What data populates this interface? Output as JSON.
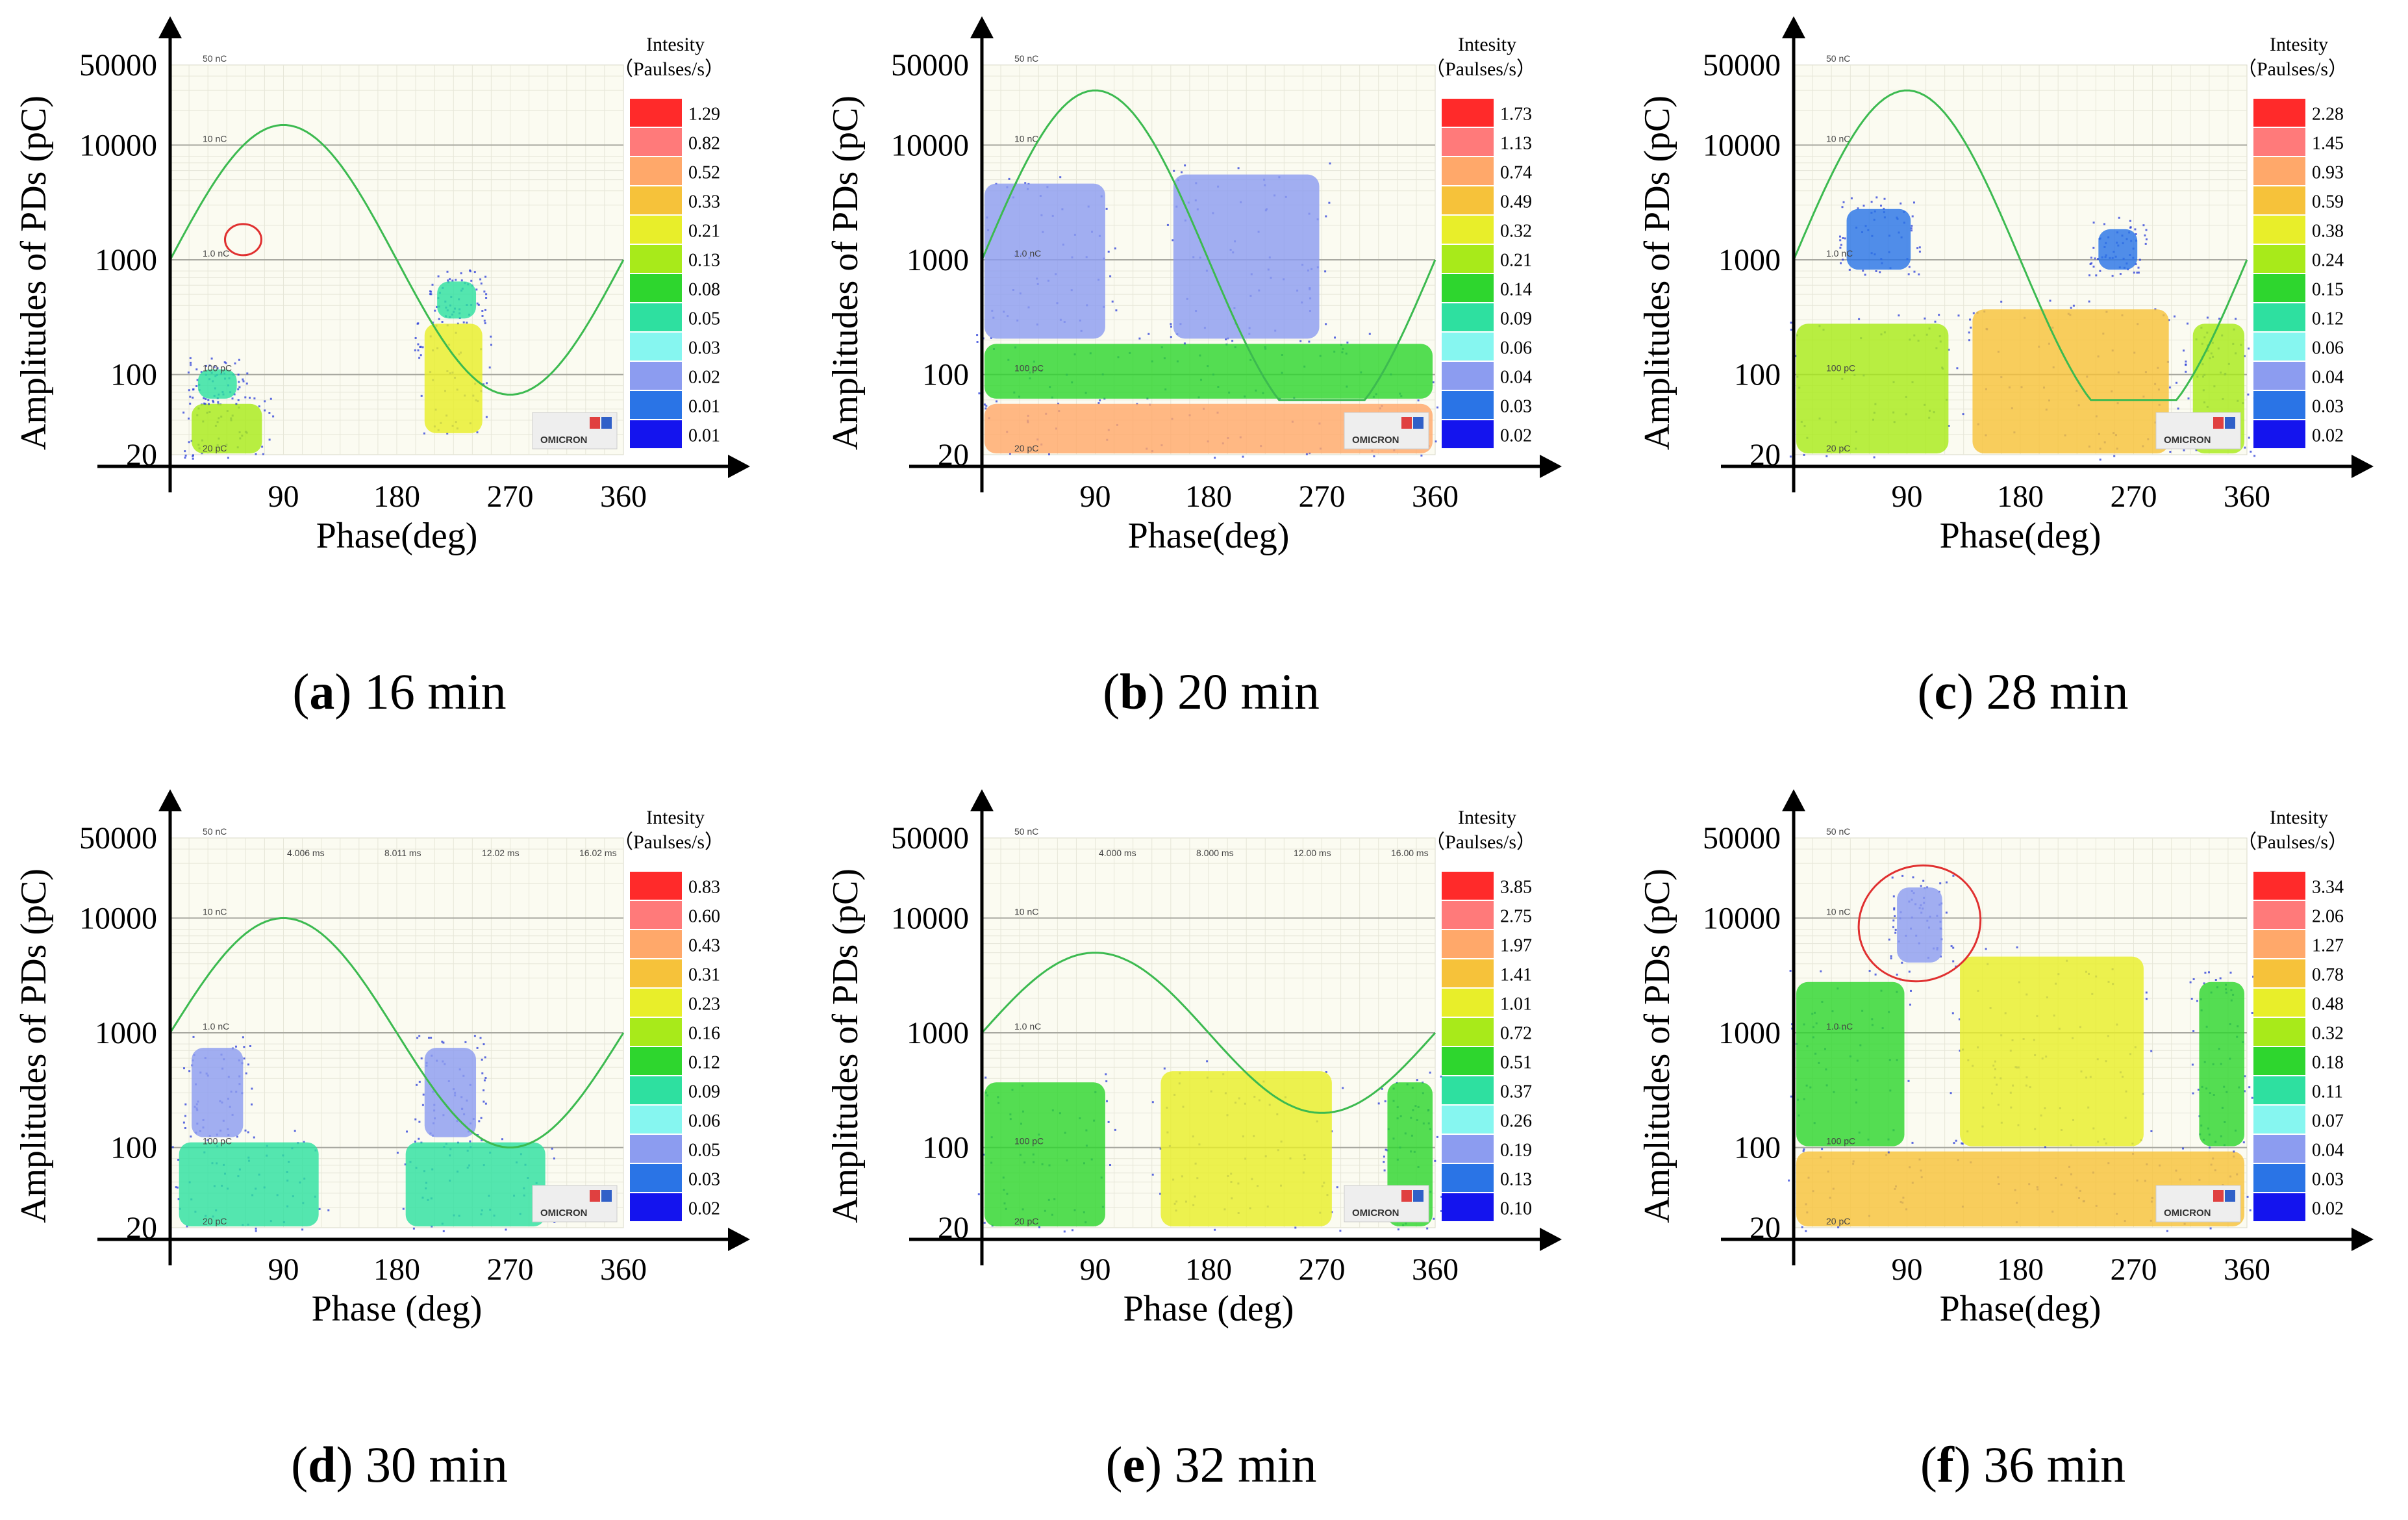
{
  "chart_data": [
    {
      "type": "heatmap",
      "panel_letter": "a",
      "panel_label": "16 min",
      "xlabel": "Phase(deg)",
      "ylabel": "Amplitudes of PDs (pC)",
      "xticks": [
        "90",
        "180",
        "270",
        "360"
      ],
      "yticks": [
        "20",
        "100",
        "1000",
        "10000",
        "50000"
      ],
      "x_range": [
        0,
        360
      ],
      "y_range": [
        20,
        50000
      ],
      "grid_labels": [
        "50 nC",
        "10 nC",
        "1.0 nC",
        "100 pC",
        "20 pC"
      ],
      "time_labels": [],
      "legend_title": [
        "Intesity",
        "（Paulses/s）"
      ],
      "legend_values": [
        "1.29",
        "0.82",
        "0.52",
        "0.33",
        "0.21",
        "0.13",
        "0.08",
        "0.05",
        "0.03",
        "0.02",
        "0.01",
        "0.01"
      ],
      "brand": "OMICRON",
      "sine_amplitude_pC": 15000,
      "clusters": [
        {
          "phase": [
            15,
            75
          ],
          "amp": [
            20,
            60
          ],
          "intensity": "0.13"
        },
        {
          "phase": [
            20,
            55
          ],
          "amp": [
            60,
            120
          ],
          "intensity": "0.05"
        },
        {
          "phase": [
            200,
            250
          ],
          "amp": [
            30,
            300
          ],
          "intensity": "0.21"
        },
        {
          "phase": [
            210,
            245
          ],
          "amp": [
            300,
            700
          ],
          "intensity": "0.05"
        }
      ],
      "annotation": {
        "type": "ellipse",
        "phase": 58,
        "amp": 1500
      }
    },
    {
      "type": "heatmap",
      "panel_letter": "b",
      "panel_label": "20 min",
      "xlabel": "Phase(deg)",
      "ylabel": "Amplitudes of PDs (pC)",
      "xticks": [
        "90",
        "180",
        "270",
        "360"
      ],
      "yticks": [
        "20",
        "100",
        "1000",
        "10000",
        "50000"
      ],
      "x_range": [
        0,
        360
      ],
      "y_range": [
        20,
        50000
      ],
      "grid_labels": [
        "50 nC",
        "10 nC",
        "1.0 nC",
        "100 pC",
        "20 pC"
      ],
      "time_labels": [],
      "legend_title": [
        "Intesity",
        "（Paulses/s）"
      ],
      "legend_values": [
        "1.73",
        "1.13",
        "0.74",
        "0.49",
        "0.32",
        "0.21",
        "0.14",
        "0.09",
        "0.06",
        "0.04",
        "0.03",
        "0.02"
      ],
      "brand": "OMICRON",
      "sine_amplitude_pC": 30000,
      "clusters": [
        {
          "phase": [
            0,
            360
          ],
          "amp": [
            20,
            60
          ],
          "intensity": "0.74"
        },
        {
          "phase": [
            0,
            360
          ],
          "amp": [
            60,
            200
          ],
          "intensity": "0.14"
        },
        {
          "phase": [
            0,
            100
          ],
          "amp": [
            200,
            5000
          ],
          "intensity": "0.04"
        },
        {
          "phase": [
            150,
            270
          ],
          "amp": [
            200,
            6000
          ],
          "intensity": "0.04"
        }
      ],
      "annotation": null
    },
    {
      "type": "heatmap",
      "panel_letter": "c",
      "panel_label": "28 min",
      "xlabel": "Phase(deg)",
      "ylabel": "Amplitudes of PDs (pC)",
      "xticks": [
        "90",
        "180",
        "270",
        "360"
      ],
      "yticks": [
        "20",
        "100",
        "1000",
        "10000",
        "50000"
      ],
      "x_range": [
        0,
        360
      ],
      "y_range": [
        20,
        50000
      ],
      "grid_labels": [
        "50 nC",
        "10 nC",
        "1.0 nC",
        "100 pC",
        "20 pC"
      ],
      "time_labels": [],
      "legend_title": [
        "Intesity",
        "（Paulses/s）"
      ],
      "legend_values": [
        "2.28",
        "1.45",
        "0.93",
        "0.59",
        "0.38",
        "0.24",
        "0.15",
        "0.12",
        "0.06",
        "0.04",
        "0.03",
        "0.02"
      ],
      "brand": "OMICRON",
      "sine_amplitude_pC": 30000,
      "clusters": [
        {
          "phase": [
            0,
            125
          ],
          "amp": [
            20,
            300
          ],
          "intensity": "0.24"
        },
        {
          "phase": [
            140,
            300
          ],
          "amp": [
            20,
            400
          ],
          "intensity": "0.59"
        },
        {
          "phase": [
            315,
            360
          ],
          "amp": [
            20,
            300
          ],
          "intensity": "0.24"
        },
        {
          "phase": [
            40,
            95
          ],
          "amp": [
            800,
            3000
          ],
          "intensity": "0.03"
        },
        {
          "phase": [
            240,
            275
          ],
          "amp": [
            800,
            2000
          ],
          "intensity": "0.03"
        }
      ],
      "annotation": null
    },
    {
      "type": "heatmap",
      "panel_letter": "d",
      "panel_label": "30 min",
      "xlabel": "Phase (deg)",
      "ylabel": "Amplitudes of  PDs (pC)",
      "xticks": [
        "90",
        "180",
        "270",
        "360"
      ],
      "yticks": [
        "20",
        "100",
        "1000",
        "10000",
        "50000"
      ],
      "x_range": [
        0,
        360
      ],
      "y_range": [
        20,
        50000
      ],
      "grid_labels": [
        "50 nC",
        "10 nC",
        "1.0 nC",
        "100 pC",
        "20 pC"
      ],
      "time_labels": [
        "4.006 ms",
        "8.011 ms",
        "12.02 ms",
        "16.02 ms"
      ],
      "legend_title": [
        "Intesity",
        "（Paulses/s）"
      ],
      "legend_values": [
        "0.83",
        "0.60",
        "0.43",
        "0.31",
        "0.23",
        "0.16",
        "0.12",
        "0.09",
        "0.06",
        "0.05",
        "0.03",
        "0.02"
      ],
      "brand": "OMICRON",
      "sine_amplitude_pC": 10000,
      "clusters": [
        {
          "phase": [
            5,
            120
          ],
          "amp": [
            20,
            120
          ],
          "intensity": "0.09"
        },
        {
          "phase": [
            15,
            60
          ],
          "amp": [
            120,
            800
          ],
          "intensity": "0.05"
        },
        {
          "phase": [
            185,
            300
          ],
          "amp": [
            20,
            120
          ],
          "intensity": "0.09"
        },
        {
          "phase": [
            200,
            245
          ],
          "amp": [
            120,
            800
          ],
          "intensity": "0.05"
        }
      ],
      "annotation": null
    },
    {
      "type": "heatmap",
      "panel_letter": "e",
      "panel_label": "32 min",
      "xlabel": "Phase (deg)",
      "ylabel": "Amplitudes of  PDs (pC)",
      "xticks": [
        "90",
        "180",
        "270",
        "360"
      ],
      "yticks": [
        "20",
        "100",
        "1000",
        "10000",
        "50000"
      ],
      "x_range": [
        0,
        360
      ],
      "y_range": [
        20,
        50000
      ],
      "grid_labels": [
        "50 nC",
        "10 nC",
        "1.0 nC",
        "100 pC",
        "20 pC"
      ],
      "time_labels": [
        "4.000 ms",
        "8.000 ms",
        "12.00 ms",
        "16.00 ms"
      ],
      "legend_title": [
        "Intesity",
        "（Paulses/s）"
      ],
      "legend_values": [
        "3.85",
        "2.75",
        "1.97",
        "1.41",
        "1.01",
        "0.72",
        "0.51",
        "0.37",
        "0.26",
        "0.19",
        "0.13",
        "0.10"
      ],
      "brand": "OMICRON",
      "sine_amplitude_pC": 5000,
      "clusters": [
        {
          "phase": [
            0,
            100
          ],
          "amp": [
            20,
            400
          ],
          "intensity": "0.51"
        },
        {
          "phase": [
            140,
            280
          ],
          "amp": [
            20,
            500
          ],
          "intensity": "1.01"
        },
        {
          "phase": [
            320,
            360
          ],
          "amp": [
            20,
            400
          ],
          "intensity": "0.51"
        }
      ],
      "annotation": null
    },
    {
      "type": "heatmap",
      "panel_letter": "f",
      "panel_label": "36 min",
      "xlabel": "Phase(deg)",
      "ylabel": "Amplitudes of PDs (pC)",
      "xticks": [
        "90",
        "180",
        "270",
        "360"
      ],
      "yticks": [
        "20",
        "100",
        "1000",
        "10000",
        "50000"
      ],
      "x_range": [
        0,
        360
      ],
      "y_range": [
        20,
        50000
      ],
      "grid_labels": [
        "50 nC",
        "10 nC",
        "1.0 nC",
        "100 pC",
        "20 pC"
      ],
      "time_labels": [],
      "legend_title": [
        "Intesity",
        "（Paulses/s）"
      ],
      "legend_values": [
        "3.34",
        "2.06",
        "1.27",
        "0.78",
        "0.48",
        "0.32",
        "0.18",
        "0.11",
        "0.07",
        "0.04",
        "0.03",
        "0.02"
      ],
      "brand": "OMICRON",
      "sine_amplitude_pC": null,
      "clusters": [
        {
          "phase": [
            0,
            360
          ],
          "amp": [
            20,
            100
          ],
          "intensity": "0.78"
        },
        {
          "phase": [
            0,
            90
          ],
          "amp": [
            100,
            3000
          ],
          "intensity": "0.18"
        },
        {
          "phase": [
            130,
            280
          ],
          "amp": [
            100,
            5000
          ],
          "intensity": "0.48"
        },
        {
          "phase": [
            320,
            360
          ],
          "amp": [
            100,
            3000
          ],
          "intensity": "0.18"
        },
        {
          "phase": [
            80,
            120
          ],
          "amp": [
            4000,
            20000
          ],
          "intensity": "0.04"
        }
      ],
      "annotation": {
        "type": "ellipse",
        "phase": 100,
        "amp": 9000
      }
    }
  ],
  "colors": {
    "scale": [
      "#ff2a2a",
      "#ff7a7a",
      "#ffa86a",
      "#f6c23a",
      "#e8ee2a",
      "#a8ea1a",
      "#2ed62e",
      "#2ee0a0",
      "#86f6f0",
      "#8c9cf0",
      "#2a74e6",
      "#1414ee"
    ],
    "plot_bg": "#fbfbf1",
    "sine": "#3cba50",
    "annotation": "#e03030"
  }
}
